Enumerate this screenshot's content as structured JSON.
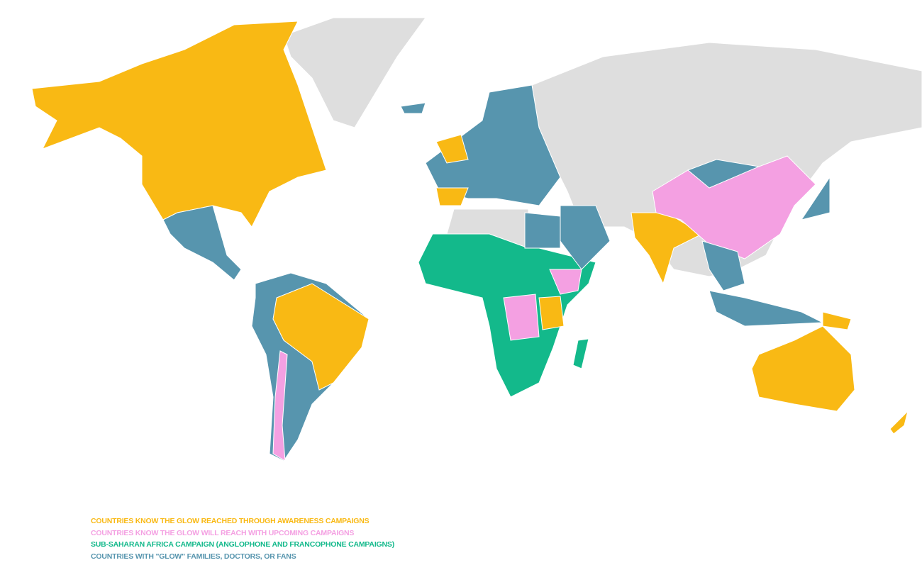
{
  "legend": [
    {
      "label": "COUNTRIES KNOW THE GLOW REACHED THROUGH AWARENESS CAMPAIGNS",
      "color": "#f9b914"
    },
    {
      "label": "COUNTRIES KNOW THE GLOW WILL REACH WITH UPCOMING CAMPAIGNS",
      "color": "#f4a0e2"
    },
    {
      "label": "SUB-SAHARAN AFRICA CAMPAIGN (ANGLOPHONE AND FRANCOPHONE CAMPAIGNS)",
      "color": "#13b98b"
    },
    {
      "label": "COUNTRIES WITH \"GLOW\" FAMILIES, DOCTORS, OR FANS",
      "color": "#5795ae"
    }
  ]
}
